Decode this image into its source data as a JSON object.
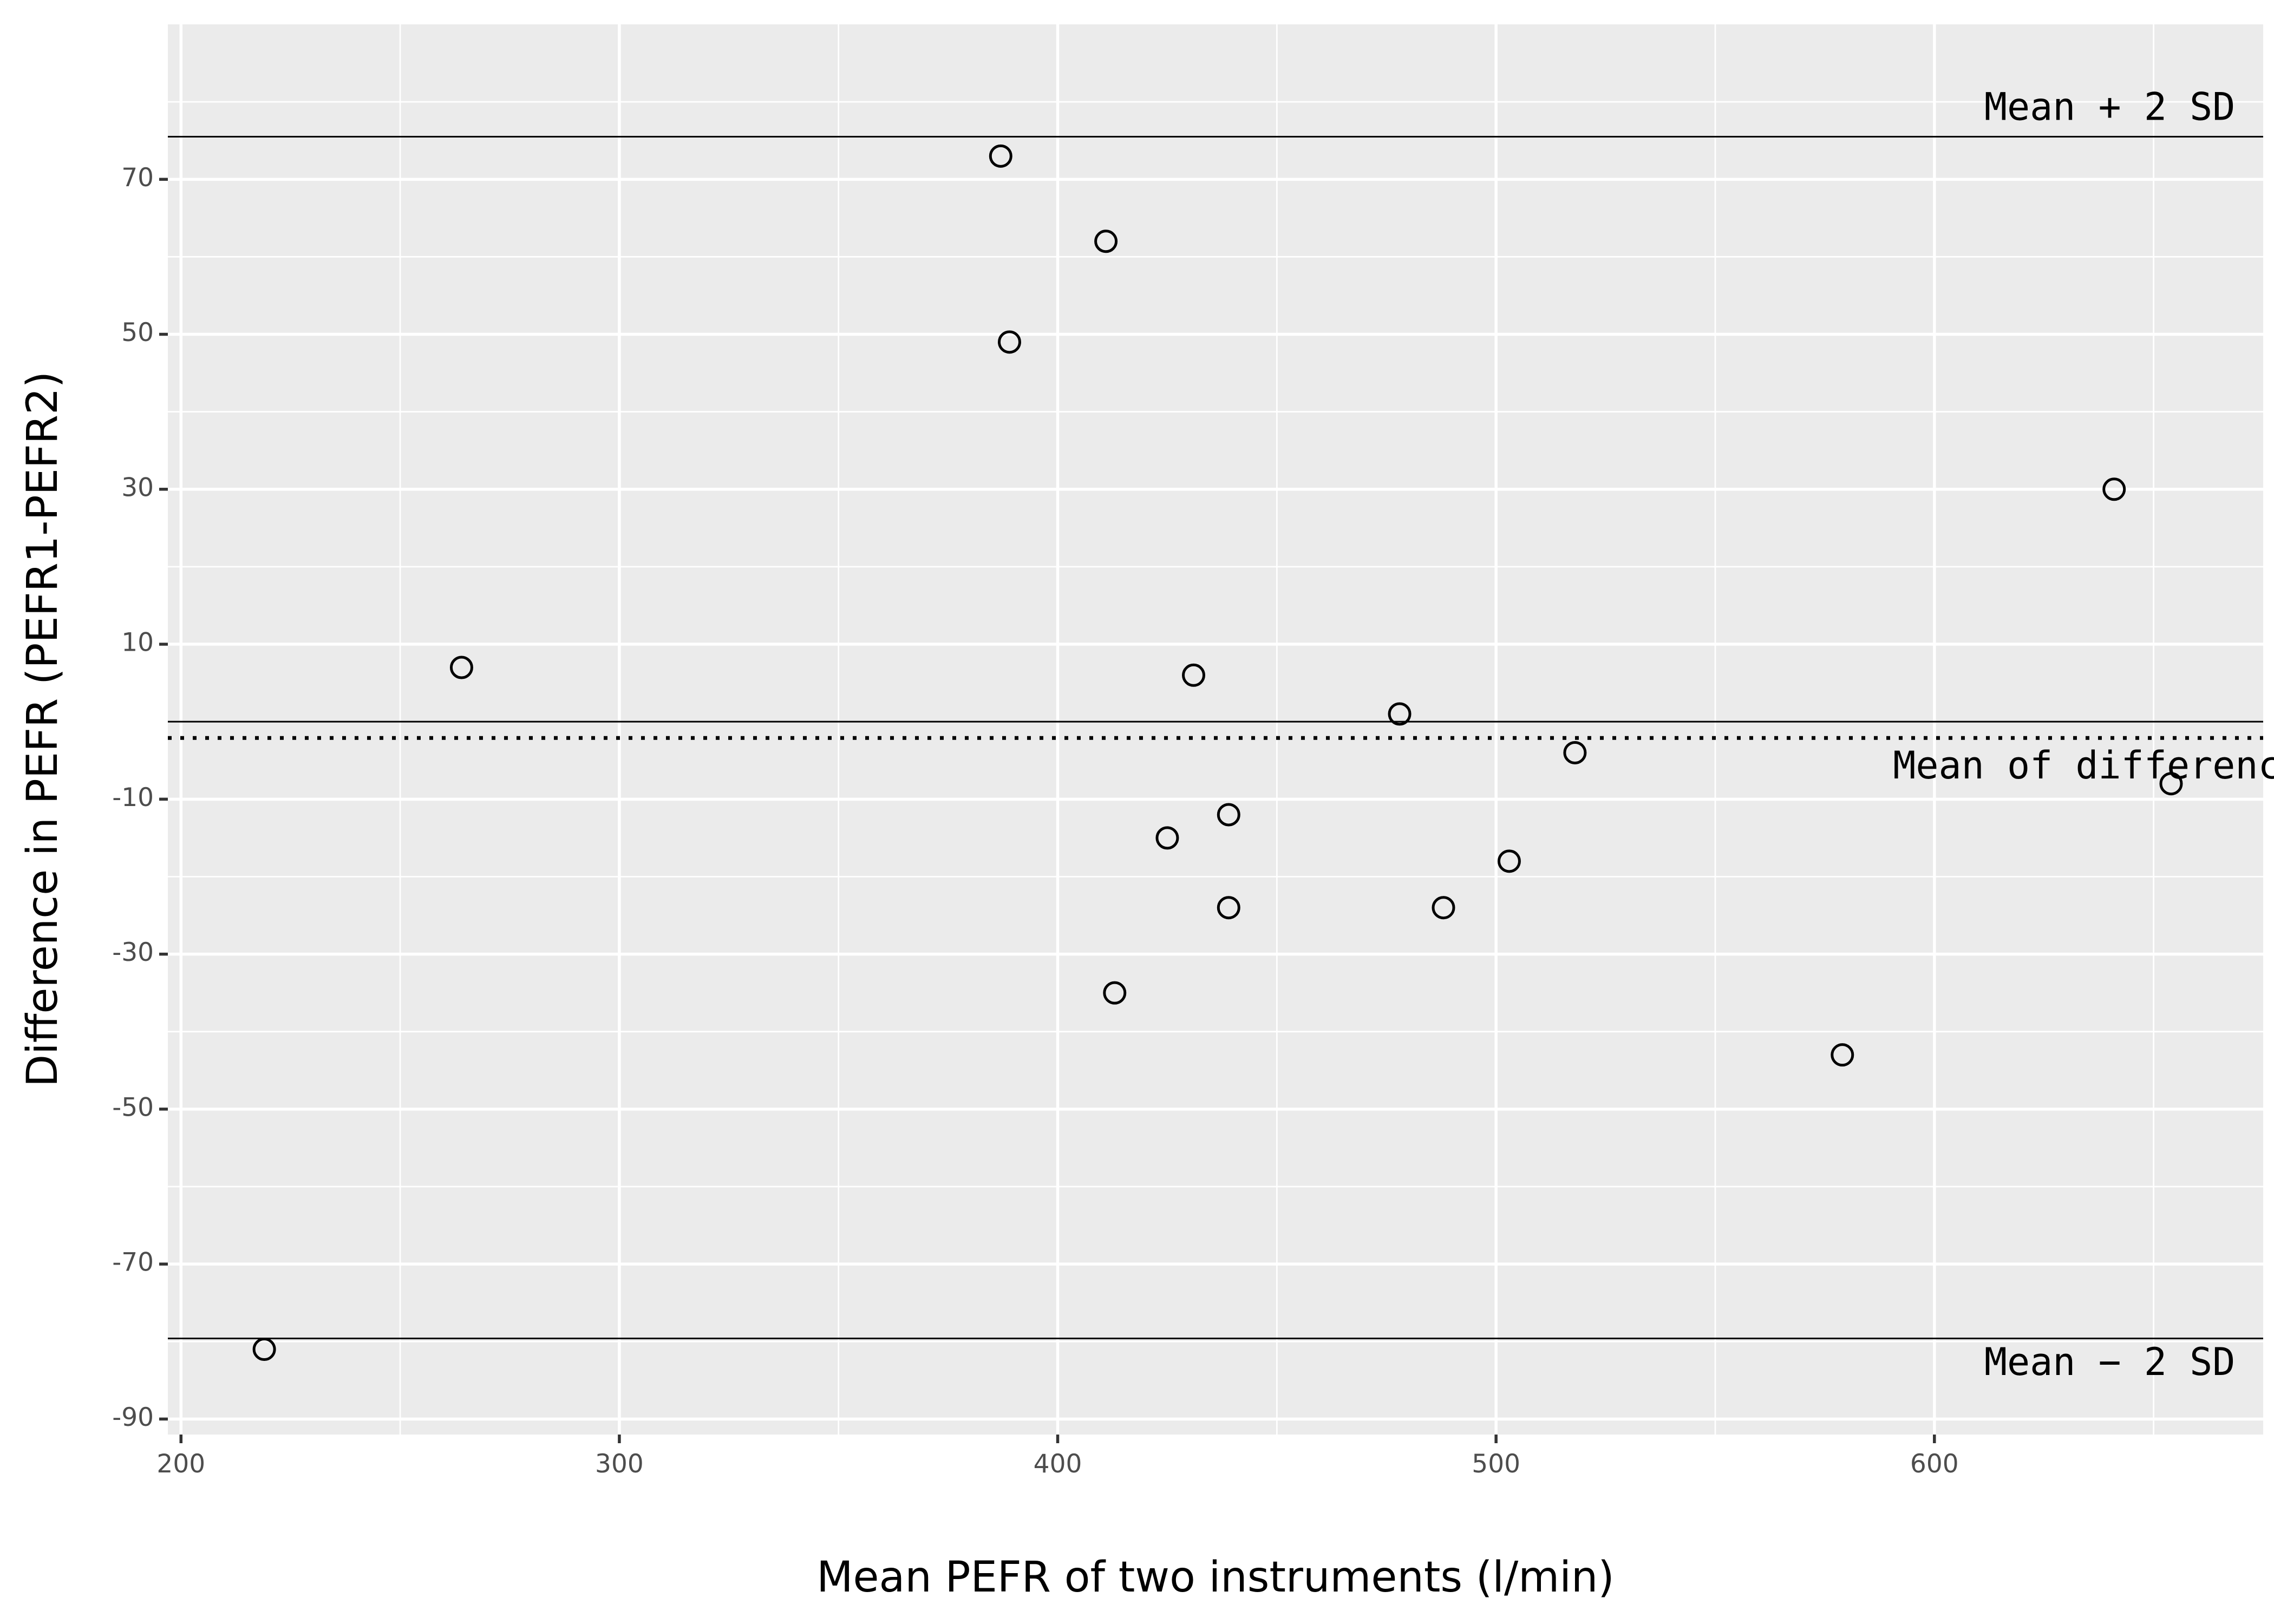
{
  "chart_data": {
    "type": "scatter",
    "title": "",
    "xlabel": "Mean PEFR of two instruments (l/min)",
    "ylabel": "Difference in PEFR (PEFR1-PEFR2)",
    "xlim": [
      197,
      675
    ],
    "ylim": [
      -92,
      90
    ],
    "x_major_ticks": [
      200,
      300,
      400,
      500,
      600
    ],
    "x_minor_ticks": [
      250,
      350,
      450,
      550,
      650
    ],
    "y_major_ticks": [
      -90,
      -70,
      -50,
      -30,
      -10,
      10,
      30,
      50,
      70
    ],
    "y_minor_ticks": [
      -80,
      -60,
      -40,
      -20,
      0,
      20,
      40,
      60,
      80
    ],
    "x_tick_labels": [
      "200",
      "300",
      "400",
      "500",
      "600"
    ],
    "y_tick_labels": [
      "-90",
      "-70",
      "-50",
      "-30",
      "-10",
      "10",
      "30",
      "50",
      "70"
    ],
    "grid": true,
    "legend": "none",
    "points": {
      "x": [
        219,
        264,
        387,
        389,
        411,
        413,
        425,
        431,
        439,
        439,
        478,
        488,
        503,
        518,
        579,
        641,
        654
      ],
      "y": [
        -81,
        7,
        73,
        49,
        62,
        -35,
        -15,
        6,
        -12,
        -24,
        1,
        -24,
        -18,
        -4,
        -43,
        30,
        -8
      ]
    },
    "reference_lines": [
      {
        "label": "Mean + 2 SD",
        "y": 75.5,
        "style": "solid"
      },
      {
        "label": "",
        "y": 0,
        "style": "solid"
      },
      {
        "label": "Mean of differences",
        "y": -2.1,
        "style": "dotted"
      },
      {
        "label": "Mean − 2 SD",
        "y": -79.6,
        "style": "solid"
      }
    ],
    "annotations": [
      {
        "text": "Mean + 2 SD",
        "x": 640,
        "y": 79
      },
      {
        "text": "Mean of differences",
        "x": 640,
        "y": -6
      },
      {
        "text": "Mean − 2 SD",
        "x": 640,
        "y": -83
      }
    ]
  }
}
